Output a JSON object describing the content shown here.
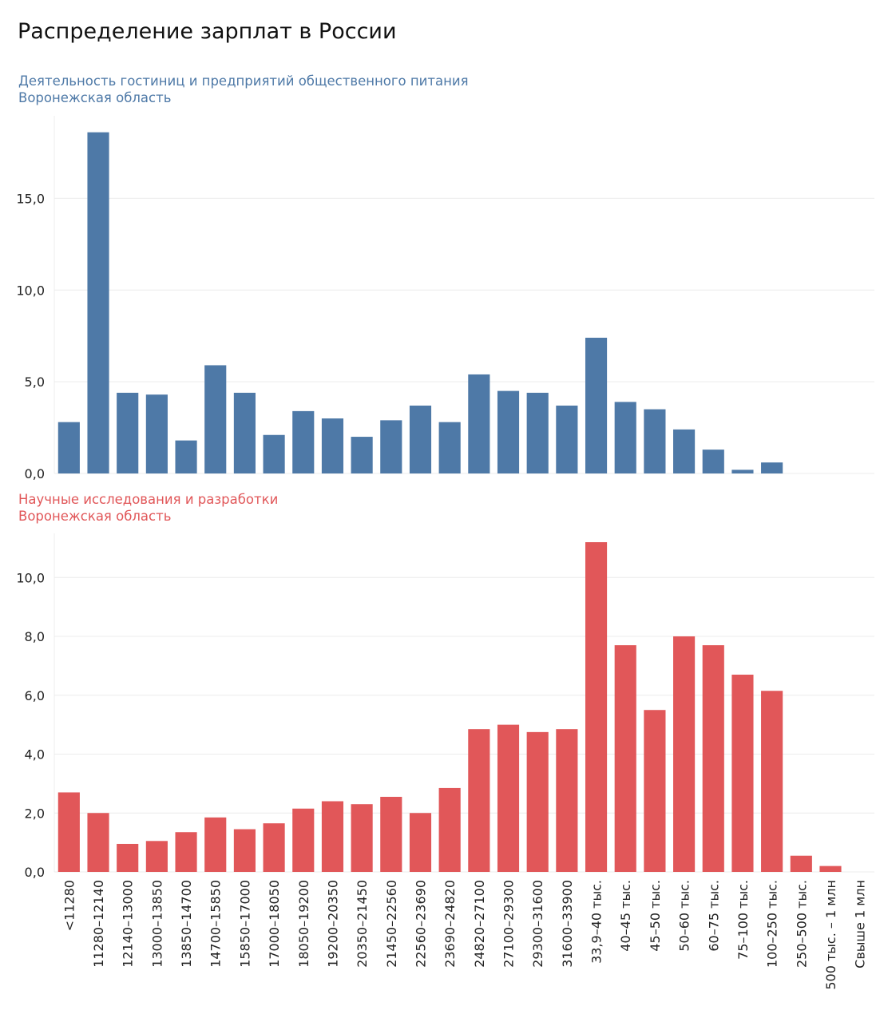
{
  "title": "Распределение зарплат в России",
  "chart_data": [
    {
      "type": "bar",
      "subtitle": [
        "Деятельность гостиниц и предприятий общественного питания",
        "Воронежская область"
      ],
      "color": "#4e79a7",
      "ylim": [
        0,
        19.5
      ],
      "yticks": [
        0,
        5,
        10,
        15
      ],
      "ytick_labels": [
        "0,0",
        "5,0",
        "10,0",
        "15,0"
      ],
      "categories": [
        "<11280",
        "11280–12140",
        "12140–13000",
        "13000–13850",
        "13850–14700",
        "14700–15850",
        "15850–17000",
        "17000–18050",
        "18050–19200",
        "19200–20350",
        "20350–21450",
        "21450–22560",
        "22560–23690",
        "23690–24820",
        "24820–27100",
        "27100–29300",
        "29300–31600",
        "31600–33900",
        "33,9–40 тыс.",
        "40–45 тыс.",
        "45–50 тыс.",
        "50–60 тыс.",
        "60–75 тыс.",
        "75–100 тыс.",
        "100–250 тыс.",
        "250–500 тыс.",
        "500 тыс. – 1 млн",
        "Свыше 1 млн"
      ],
      "values": [
        2.8,
        18.6,
        4.4,
        4.3,
        1.8,
        5.9,
        4.4,
        2.1,
        3.4,
        3.0,
        2.0,
        2.9,
        3.7,
        2.8,
        5.4,
        4.5,
        4.4,
        3.7,
        7.4,
        3.9,
        3.5,
        2.4,
        1.3,
        0.2,
        0.6,
        0,
        0,
        0
      ]
    },
    {
      "type": "bar",
      "subtitle": [
        "Научные исследования и разработки",
        "Воронежская область"
      ],
      "color": "#e15759",
      "ylim": [
        0,
        11.5
      ],
      "yticks": [
        0,
        2,
        4,
        6,
        8,
        10
      ],
      "ytick_labels": [
        "0,0",
        "2,0",
        "4,0",
        "6,0",
        "8,0",
        "10,0"
      ],
      "categories": [
        "<11280",
        "11280–12140",
        "12140–13000",
        "13000–13850",
        "13850–14700",
        "14700–15850",
        "15850–17000",
        "17000–18050",
        "18050–19200",
        "19200–20350",
        "20350–21450",
        "21450–22560",
        "22560–23690",
        "23690–24820",
        "24820–27100",
        "27100–29300",
        "29300–31600",
        "31600–33900",
        "33,9–40 тыс.",
        "40–45 тыс.",
        "45–50 тыс.",
        "50–60 тыс.",
        "60–75 тыс.",
        "75–100 тыс.",
        "100–250 тыс.",
        "250–500 тыс.",
        "500 тыс. – 1 млн",
        "Свыше 1 млн"
      ],
      "values": [
        2.7,
        2.0,
        0.95,
        1.05,
        1.35,
        1.85,
        1.45,
        1.65,
        2.15,
        2.4,
        2.3,
        2.55,
        2.0,
        2.85,
        4.85,
        5.0,
        4.75,
        4.85,
        11.2,
        7.7,
        5.5,
        8.0,
        7.7,
        6.7,
        6.15,
        0.55,
        0.2,
        0
      ]
    }
  ]
}
